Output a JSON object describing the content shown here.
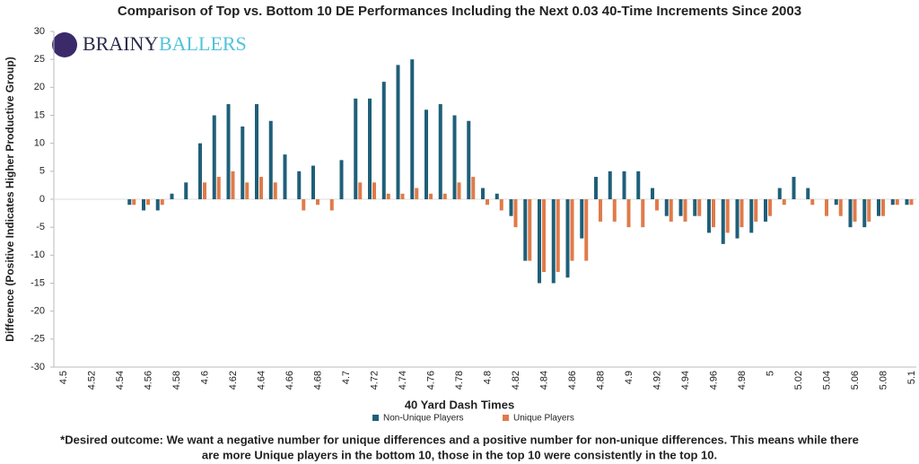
{
  "chart_data": {
    "type": "bar",
    "title": "Comparison of Top vs. Bottom 10 DE Performances Including the Next 0.03 40-Time Increments Since 2003",
    "x_label": "40 Yard Dash Times",
    "y_label": "Difference (Positive Indicates Higher Productive Group)",
    "categories": [
      "4.5",
      null,
      "4.52",
      null,
      "4.54",
      null,
      "4.56",
      null,
      "4.58",
      null,
      "4.6",
      null,
      "4.62",
      null,
      "4.64",
      null,
      "4.66",
      null,
      "4.68",
      null,
      "4.7",
      null,
      "4.72",
      null,
      "4.74",
      null,
      "4.76",
      null,
      "4.78",
      null,
      "4.8",
      null,
      "4.82",
      null,
      "4.84",
      null,
      "4.86",
      null,
      "4.88",
      null,
      "4.9",
      null,
      "4.92",
      null,
      "4.94",
      null,
      "4.96",
      null,
      "4.98",
      null,
      "5",
      null,
      "5.02",
      null,
      "5.04",
      null,
      "5.06",
      null,
      "5.08",
      null,
      "5.1"
    ],
    "series": [
      {
        "name": "Non-Unique Players",
        "color": "#1f5f78",
        "values": [
          0,
          0,
          0,
          0,
          0,
          -1,
          -2,
          -2,
          1,
          3,
          10,
          15,
          17,
          13,
          17,
          14,
          8,
          5,
          6,
          0,
          7,
          18,
          18,
          21,
          24,
          25,
          16,
          17,
          15,
          14,
          2,
          1,
          -3,
          -11,
          -15,
          -15,
          -14,
          -7,
          4,
          5,
          5,
          5,
          2,
          -3,
          -3,
          -3,
          -6,
          -8,
          -7,
          -6,
          -4,
          2,
          4,
          2,
          0,
          -1,
          -5,
          -5,
          -3,
          -1,
          -1
        ]
      },
      {
        "name": "Unique Players",
        "color": "#e07b4a",
        "values": [
          0,
          0,
          0,
          0,
          0,
          -1,
          -1,
          -1,
          0,
          0,
          3,
          4,
          5,
          3,
          4,
          3,
          0,
          -2,
          -1,
          -2,
          0,
          3,
          3,
          1,
          1,
          2,
          1,
          1,
          3,
          4,
          -1,
          -2,
          -5,
          -11,
          -13,
          -13,
          -11,
          -11,
          -4,
          -4,
          -5,
          -5,
          -2,
          -4,
          -4,
          -3,
          -5,
          -6,
          -5,
          -4,
          -3,
          -1,
          0,
          -1,
          -3,
          -3,
          -4,
          -4,
          -3,
          -1,
          -1
        ]
      }
    ],
    "ylim": [
      -30,
      30
    ],
    "yticks": [
      -30,
      -25,
      -20,
      -15,
      -10,
      -5,
      0,
      5,
      10,
      15,
      20,
      25,
      30
    ],
    "grid": false
  },
  "logo": [
    "BRAINY",
    "BALLERS"
  ],
  "footnote": [
    "*Desired outcome: We want a negative number for unique differences and a positive number for non-unique differences. This means while there",
    "are more Unique players in the bottom 10, those in the top 10 were consistently in the top 10."
  ]
}
